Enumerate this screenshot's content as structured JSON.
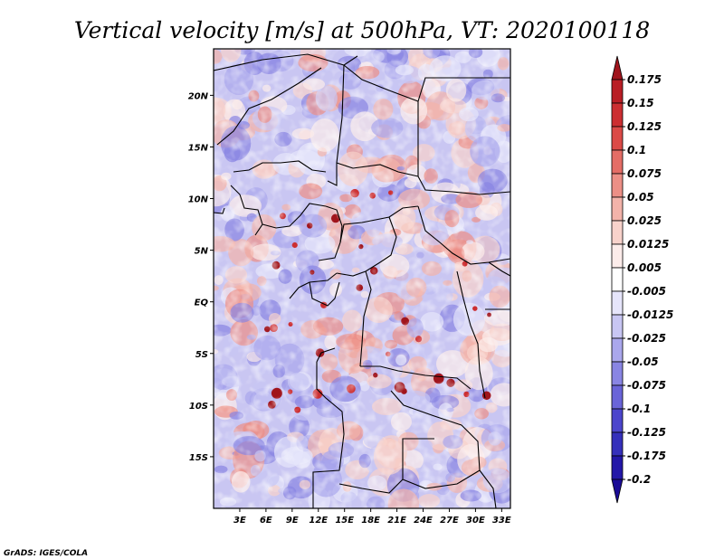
{
  "title": "Vertical velocity [m/s] at 500hPa, VT: 2020100118",
  "credit": "GrADS: IGES/COLA",
  "map": {
    "lon_range": [
      0,
      34
    ],
    "lat_range": [
      -20,
      24.5
    ],
    "lon_ticks": [
      "3E",
      "6E",
      "9E",
      "12E",
      "15E",
      "18E",
      "21E",
      "24E",
      "27E",
      "30E",
      "33E"
    ],
    "lat_ticks": [
      "20N",
      "15N",
      "10N",
      "5N",
      "EQ",
      "5S",
      "10S",
      "15S"
    ],
    "field": "vertical velocity",
    "colormap": "blue-white-red diverging"
  },
  "colorbar": {
    "labels": [
      "0.175",
      "0.15",
      "0.125",
      "0.1",
      "0.075",
      "0.05",
      "0.025",
      "0.0125",
      "0.005",
      "-0.005",
      "-0.0125",
      "-0.025",
      "-0.05",
      "-0.075",
      "-0.1",
      "-0.125",
      "-0.175",
      "-0.2"
    ],
    "colors": [
      "#a0141c",
      "#b91e25",
      "#cc2e31",
      "#db4a47",
      "#e46d66",
      "#ec8f86",
      "#f3b3aa",
      "#f8d2cb",
      "#fcecea",
      "#ffffff",
      "#e6e5fb",
      "#c8c6f3",
      "#aaa7ec",
      "#8985e3",
      "#6a64d8",
      "#4c45cc",
      "#3530bb",
      "#2317a8",
      "#1a0b96"
    ]
  }
}
